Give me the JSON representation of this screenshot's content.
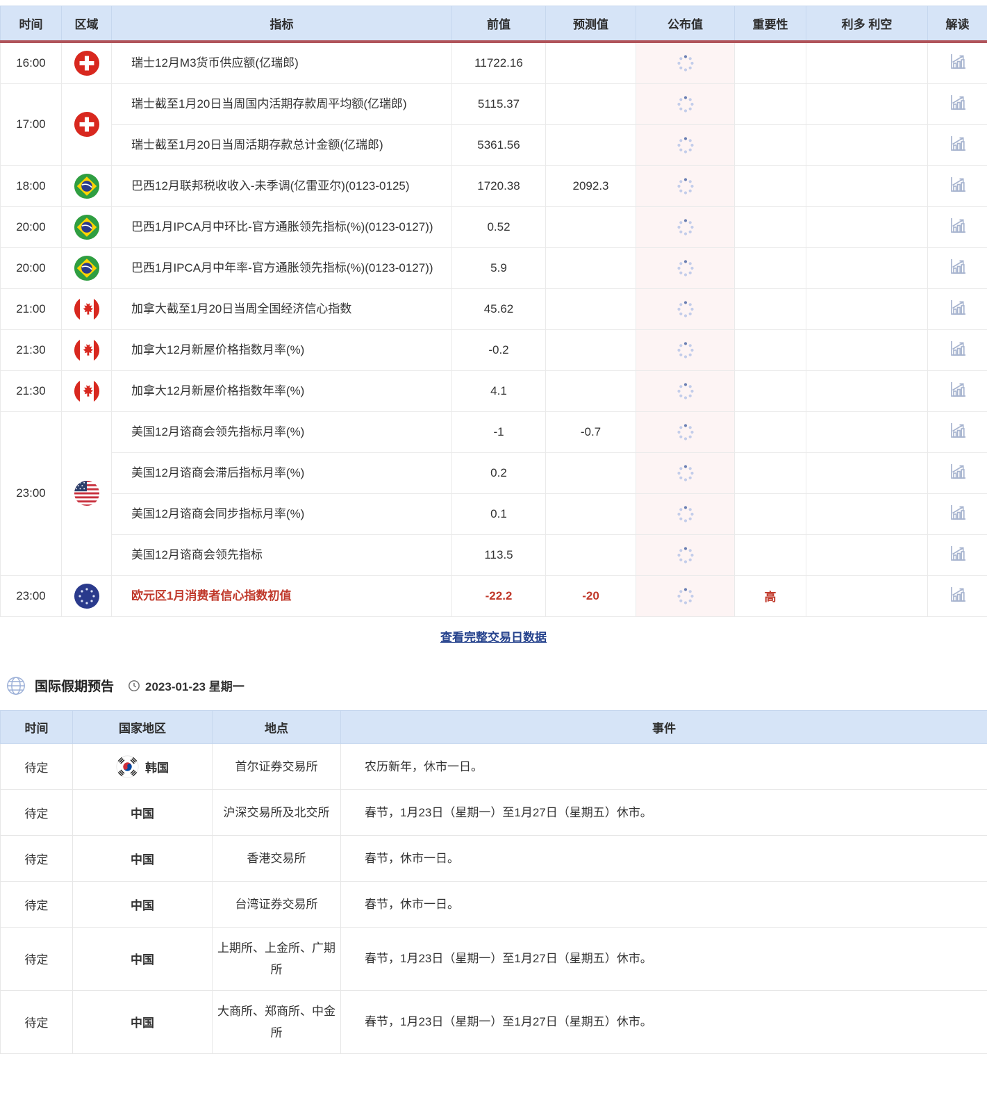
{
  "colors": {
    "header_bg": "#d6e4f7",
    "header_rule": "#b0545a",
    "highlight_red": "#c0392b",
    "link_blue": "#24418c",
    "published_bg": "#fdf4f4",
    "icon_blue": "#a7b4cf"
  },
  "icons": {
    "published_cell": "loading-spinner-icon",
    "interpret_cell": "chart-icon",
    "section": "globe-icon",
    "date": "clock-icon"
  },
  "calendar_table": {
    "headers": [
      "时间",
      "区域",
      "指标",
      "前值",
      "预测值",
      "公布值",
      "重要性",
      "利多 利空",
      "解读"
    ],
    "groups": [
      {
        "time": "16:00",
        "flag": "switzerland",
        "rows": [
          {
            "indicator": "瑞士12月M3货币供应额(亿瑞郎)",
            "previous": "11722.16",
            "forecast": ""
          }
        ]
      },
      {
        "time": "17:00",
        "flag": "switzerland",
        "rows": [
          {
            "indicator": "瑞士截至1月20日当周国内活期存款周平均额(亿瑞郎)",
            "previous": "5115.37",
            "forecast": ""
          },
          {
            "indicator": "瑞士截至1月20日当周活期存款总计金额(亿瑞郎)",
            "previous": "5361.56",
            "forecast": ""
          }
        ]
      },
      {
        "time": "18:00",
        "flag": "brazil",
        "rows": [
          {
            "indicator": "巴西12月联邦税收收入-未季调(亿雷亚尔)(0123-0125)",
            "previous": "1720.38",
            "forecast": "2092.3"
          }
        ]
      },
      {
        "time": "20:00",
        "flag": "brazil",
        "rows": [
          {
            "indicator": "巴西1月IPCA月中环比-官方通胀领先指标(%)(0123-0127))",
            "previous": "0.52",
            "forecast": ""
          }
        ]
      },
      {
        "time": "20:00",
        "flag": "brazil",
        "rows": [
          {
            "indicator": "巴西1月IPCA月中年率-官方通胀领先指标(%)(0123-0127))",
            "previous": "5.9",
            "forecast": ""
          }
        ]
      },
      {
        "time": "21:00",
        "flag": "canada",
        "rows": [
          {
            "indicator": "加拿大截至1月20日当周全国经济信心指数",
            "previous": "45.62",
            "forecast": ""
          }
        ]
      },
      {
        "time": "21:30",
        "flag": "canada",
        "rows": [
          {
            "indicator": "加拿大12月新屋价格指数月率(%)",
            "previous": "-0.2",
            "forecast": ""
          }
        ]
      },
      {
        "time": "21:30",
        "flag": "canada",
        "rows": [
          {
            "indicator": "加拿大12月新屋价格指数年率(%)",
            "previous": "4.1",
            "forecast": ""
          }
        ]
      },
      {
        "time": "23:00",
        "flag": "usa",
        "rows": [
          {
            "indicator": "美国12月谘商会领先指标月率(%)",
            "previous": "-1",
            "forecast": "-0.7"
          },
          {
            "indicator": "美国12月谘商会滞后指标月率(%)",
            "previous": "0.2",
            "forecast": ""
          },
          {
            "indicator": "美国12月谘商会同步指标月率(%)",
            "previous": "0.1",
            "forecast": ""
          },
          {
            "indicator": "美国12月谘商会领先指标",
            "previous": "113.5",
            "forecast": ""
          }
        ]
      },
      {
        "time": "23:00",
        "flag": "eu",
        "rows": [
          {
            "indicator": "欧元区1月消费者信心指数初值",
            "previous": "-22.2",
            "forecast": "-20",
            "importance": "高",
            "highlight": true
          }
        ]
      }
    ],
    "footer_link": "查看完整交易日数据"
  },
  "holiday_section": {
    "title": "国际假期预告",
    "date": "2023-01-23 星期一",
    "headers": [
      "时间",
      "国家地区",
      "地点",
      "事件"
    ],
    "rows": [
      {
        "time": "待定",
        "flag": "south-korea",
        "country": "韩国",
        "location": "首尔证券交易所",
        "event": "农历新年，休市一日。"
      },
      {
        "time": "待定",
        "flag": "",
        "country": "中国",
        "location": "沪深交易所及北交所",
        "event": "春节，1月23日（星期一）至1月27日（星期五）休市。"
      },
      {
        "time": "待定",
        "flag": "",
        "country": "中国",
        "location": "香港交易所",
        "event": "春节，休市一日。"
      },
      {
        "time": "待定",
        "flag": "",
        "country": "中国",
        "location": "台湾证券交易所",
        "event": "春节，休市一日。"
      },
      {
        "time": "待定",
        "flag": "",
        "country": "中国",
        "location": "上期所、上金所、广期所",
        "event": "春节，1月23日（星期一）至1月27日（星期五）休市。"
      },
      {
        "time": "待定",
        "flag": "",
        "country": "中国",
        "location": "大商所、郑商所、中金所",
        "event": "春节，1月23日（星期一）至1月27日（星期五）休市。"
      }
    ]
  }
}
